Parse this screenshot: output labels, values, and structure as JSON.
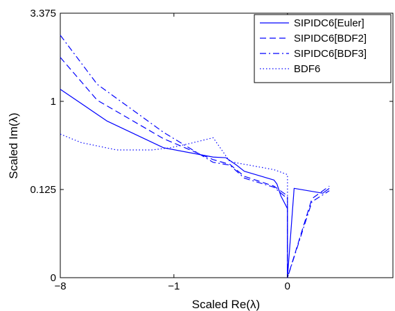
{
  "chart_data": {
    "type": "line",
    "title": "",
    "xlabel": "Scaled Re(λ)",
    "ylabel": "Scaled Im(λ)",
    "xlim": [
      -8,
      0.8
    ],
    "ylim": [
      0,
      3.375
    ],
    "x_scale": "cube-root",
    "y_scale": "cube-root",
    "xticks": [
      -8,
      -1,
      0
    ],
    "xtick_labels": [
      "−8",
      "−1",
      "0"
    ],
    "yticks": [
      0,
      0.125,
      1,
      3.375
    ],
    "ytick_labels": [
      "0",
      "0.125",
      "1",
      "3.375"
    ],
    "grid": false,
    "legend_position": "top-right",
    "series": [
      {
        "name": "SIPIDC6[Euler]",
        "style": "solid",
        "color": "#0000ff",
        "x": [
          -8,
          -4.0,
          -1.3,
          -0.28,
          -0.16,
          -0.09,
          -0.055,
          -0.0017,
          -0.0008,
          -0.0002,
          0,
          0,
          0,
          0,
          0,
          0.0002,
          0.03,
          0.05
        ],
        "y": [
          1.22,
          0.7,
          0.4,
          0.32,
          0.315,
          0.26,
          0.22,
          0.17,
          0.15,
          0.1,
          0.06,
          0.03,
          0.01,
          0.002,
          0.0,
          0.13,
          0.11,
          0.13
        ]
      },
      {
        "name": "SIPIDC6[BDF2]",
        "style": "dashed",
        "color": "#0000ff",
        "x": [
          -8,
          -4.7,
          -1.3,
          -0.28,
          -0.13,
          -0.055,
          -0.0017,
          0,
          0,
          0.01,
          0.05
        ],
        "y": [
          1.95,
          1.02,
          0.49,
          0.3,
          0.265,
          0.19,
          0.14,
          0.1,
          0.0,
          0.09,
          0.14
        ]
      },
      {
        "name": "SIPIDC6[BDF3]",
        "style": "dashdot",
        "color": "#0000ff",
        "x": [
          -8,
          -4.7,
          -1.3,
          -0.28,
          -0.13,
          -0.055,
          -0.0017,
          0,
          0,
          0.01,
          0.05
        ],
        "y": [
          2.6,
          1.32,
          0.56,
          0.28,
          0.26,
          0.18,
          0.135,
          0.09,
          0.0,
          0.08,
          0.12
        ]
      },
      {
        "name": "BDF6",
        "style": "dotted",
        "color": "#0000ff",
        "x": [
          -8,
          -6.0,
          -3.4,
          -1.7,
          -1.1,
          -0.64,
          -0.28,
          -0.13,
          -0.0017,
          0,
          0,
          0
        ],
        "y": [
          0.54,
          0.45,
          0.38,
          0.38,
          0.4,
          0.44,
          0.5,
          0.285,
          0.23,
          0.2,
          0.15,
          0.0
        ]
      }
    ]
  }
}
